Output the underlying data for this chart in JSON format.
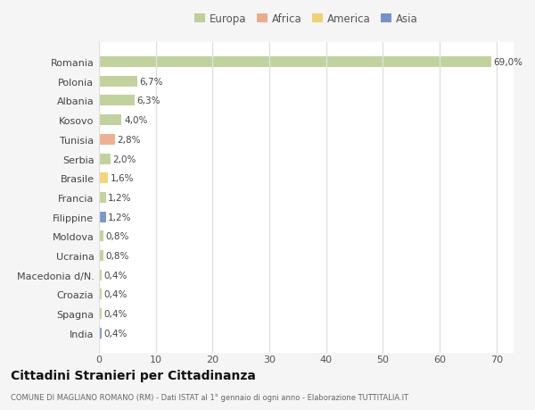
{
  "countries": [
    "Romania",
    "Polonia",
    "Albania",
    "Kosovo",
    "Tunisia",
    "Serbia",
    "Brasile",
    "Francia",
    "Filippine",
    "Moldova",
    "Ucraina",
    "Macedonia d/N.",
    "Croazia",
    "Spagna",
    "India"
  ],
  "values": [
    69.0,
    6.7,
    6.3,
    4.0,
    2.8,
    2.0,
    1.6,
    1.2,
    1.2,
    0.8,
    0.8,
    0.4,
    0.4,
    0.4,
    0.4
  ],
  "labels": [
    "69,0%",
    "6,7%",
    "6,3%",
    "4,0%",
    "2,8%",
    "2,0%",
    "1,6%",
    "1,2%",
    "1,2%",
    "0,8%",
    "0,8%",
    "0,4%",
    "0,4%",
    "0,4%",
    "0,4%"
  ],
  "colors": [
    "#b5c98a",
    "#b5c98a",
    "#b5c98a",
    "#b5c98a",
    "#e8a07a",
    "#b5c98a",
    "#f0cc60",
    "#b5c98a",
    "#6080c0",
    "#b5c98a",
    "#b5c98a",
    "#b5c98a",
    "#b5c98a",
    "#b5c98a",
    "#6080c0"
  ],
  "legend_labels": [
    "Europa",
    "Africa",
    "America",
    "Asia"
  ],
  "legend_colors": [
    "#b5c98a",
    "#e8a07a",
    "#f0cc60",
    "#6080c0"
  ],
  "title": "Cittadini Stranieri per Cittadinanza",
  "subtitle": "COMUNE DI MAGLIANO ROMANO (RM) - Dati ISTAT al 1° gennaio di ogni anno - Elaborazione TUTTITALIA.IT",
  "xlabel_ticks": [
    0,
    10,
    20,
    30,
    40,
    50,
    60,
    70
  ],
  "xlim": [
    0,
    73
  ],
  "background_color": "#f5f5f5",
  "plot_bg_color": "#ffffff",
  "grid_color": "#e0e0e0",
  "bar_height": 0.55
}
